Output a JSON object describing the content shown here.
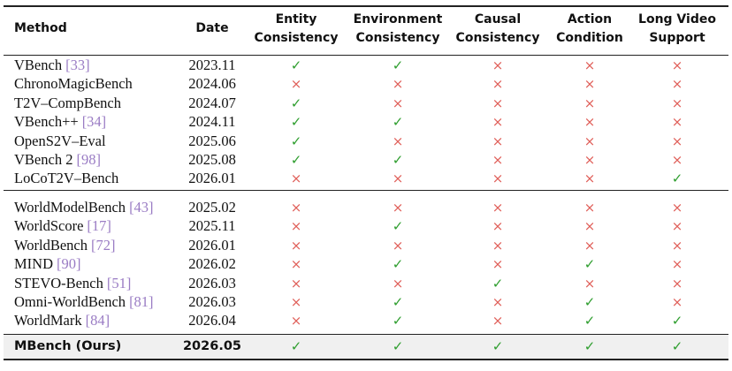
{
  "header": {
    "columns": [
      [
        "Method"
      ],
      [
        "Date"
      ],
      [
        "Entity",
        "Consistency"
      ],
      [
        "Environment",
        "Consistency"
      ],
      [
        "Causal",
        "Consistency"
      ],
      [
        "Action",
        "Condition"
      ],
      [
        "Long Video",
        "Support"
      ]
    ]
  },
  "groups": [
    {
      "rows": [
        {
          "method": "VBench",
          "ref": "[33]",
          "date": "2023.11",
          "marks": [
            "✓",
            "✓",
            "×",
            "×",
            "×"
          ]
        },
        {
          "method": "ChronoMagicBench",
          "date": "2024.06",
          "marks": [
            "×",
            "×",
            "×",
            "×",
            "×"
          ]
        },
        {
          "method": "T2V–CompBench",
          "date": "2024.07",
          "marks": [
            "✓",
            "×",
            "×",
            "×",
            "×"
          ]
        },
        {
          "method": "VBench++",
          "ref": "[34]",
          "date": "2024.11",
          "marks": [
            "✓",
            "✓",
            "×",
            "×",
            "×"
          ]
        },
        {
          "method": "OpenS2V–Eval",
          "date": "2025.06",
          "marks": [
            "✓",
            "×",
            "×",
            "×",
            "×"
          ]
        },
        {
          "method": "VBench 2",
          "ref": "[98]",
          "date": "2025.08",
          "marks": [
            "✓",
            "✓",
            "×",
            "×",
            "×"
          ]
        },
        {
          "method": "LoCoT2V–Bench",
          "date": "2026.01",
          "marks": [
            "×",
            "×",
            "×",
            "×",
            "✓"
          ]
        }
      ]
    },
    {
      "rows": [
        {
          "method": "WorldModelBench",
          "ref": "[43]",
          "date": "2025.02",
          "marks": [
            "×",
            "×",
            "×",
            "×",
            "×"
          ]
        },
        {
          "method": "WorldScore",
          "ref": "[17]",
          "date": "2025.11",
          "marks": [
            "×",
            "✓",
            "×",
            "×",
            "×"
          ]
        },
        {
          "method": "WorldBench",
          "ref": "[72]",
          "date": "2026.01",
          "marks": [
            "×",
            "×",
            "×",
            "×",
            "×"
          ]
        },
        {
          "method": "MIND",
          "ref": "[90]",
          "date": "2026.02",
          "marks": [
            "×",
            "✓",
            "×",
            "✓",
            "×"
          ]
        },
        {
          "method": "STEVO-Bench",
          "ref": "[51]",
          "date": "2026.03",
          "marks": [
            "×",
            "×",
            "✓",
            "×",
            "×"
          ]
        },
        {
          "method": "Omni-WorldBench",
          "ref": "[81]",
          "date": "2026.03",
          "marks": [
            "×",
            "✓",
            "×",
            "✓",
            "×"
          ]
        },
        {
          "method": "WorldMark",
          "ref": "[84]",
          "date": "2026.04",
          "marks": [
            "×",
            "✓",
            "×",
            "✓",
            "✓"
          ]
        }
      ]
    },
    {
      "rows": [
        {
          "method": "MBench (Ours)",
          "date": "2026.05",
          "marks": [
            "✓",
            "✓",
            "✓",
            "✓",
            "✓"
          ]
        }
      ]
    }
  ],
  "mark_colors": {
    "✓": "#2e9e2e",
    "×": "#e0605a"
  }
}
